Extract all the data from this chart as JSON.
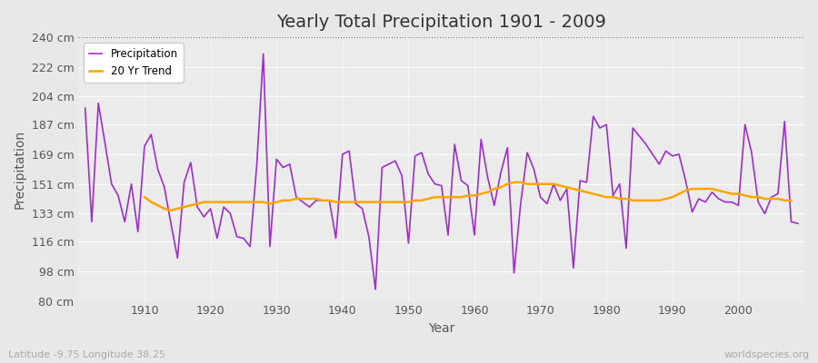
{
  "title": "Yearly Total Precipitation 1901 - 2009",
  "xlabel": "Year",
  "ylabel": "Precipitation",
  "lat_lon_label": "Latitude -9.75 Longitude 38.25",
  "watermark": "worldspecies.org",
  "years": [
    1901,
    1902,
    1903,
    1904,
    1905,
    1906,
    1907,
    1908,
    1909,
    1910,
    1911,
    1912,
    1913,
    1914,
    1915,
    1916,
    1917,
    1918,
    1919,
    1920,
    1921,
    1922,
    1923,
    1924,
    1925,
    1926,
    1927,
    1928,
    1929,
    1930,
    1931,
    1932,
    1933,
    1934,
    1935,
    1936,
    1937,
    1938,
    1939,
    1940,
    1941,
    1942,
    1943,
    1944,
    1945,
    1946,
    1947,
    1948,
    1949,
    1950,
    1951,
    1952,
    1953,
    1954,
    1955,
    1956,
    1957,
    1958,
    1959,
    1960,
    1961,
    1962,
    1963,
    1964,
    1965,
    1966,
    1967,
    1968,
    1969,
    1970,
    1971,
    1972,
    1973,
    1974,
    1975,
    1976,
    1977,
    1978,
    1979,
    1980,
    1981,
    1982,
    1983,
    1984,
    1985,
    1986,
    1987,
    1988,
    1989,
    1990,
    1991,
    1992,
    1993,
    1994,
    1995,
    1996,
    1997,
    1998,
    1999,
    2000,
    2001,
    2002,
    2003,
    2004,
    2005,
    2006,
    2007,
    2008,
    2009
  ],
  "precipitation": [
    197,
    128,
    200,
    176,
    151,
    144,
    128,
    151,
    122,
    174,
    181,
    160,
    149,
    127,
    106,
    152,
    164,
    137,
    131,
    136,
    118,
    137,
    133,
    119,
    118,
    113,
    162,
    230,
    113,
    166,
    161,
    163,
    143,
    140,
    137,
    141,
    141,
    141,
    118,
    169,
    171,
    139,
    136,
    119,
    87,
    161,
    163,
    165,
    156,
    115,
    168,
    170,
    157,
    151,
    150,
    120,
    175,
    153,
    150,
    120,
    178,
    155,
    138,
    158,
    173,
    97,
    139,
    170,
    160,
    143,
    139,
    151,
    141,
    148,
    100,
    153,
    152,
    192,
    185,
    187,
    144,
    151,
    112,
    185,
    180,
    175,
    169,
    163,
    171,
    168,
    169,
    153,
    134,
    142,
    140,
    146,
    142,
    140,
    140,
    138,
    187,
    170,
    140,
    133,
    143,
    145,
    189,
    128,
    127
  ],
  "trend_start_year": 1910,
  "trend": [
    143,
    140,
    138,
    136,
    135,
    136,
    137,
    138,
    139,
    140,
    140,
    140,
    140,
    140,
    140,
    140,
    140,
    140,
    140,
    139,
    140,
    141,
    141,
    142,
    142,
    142,
    142,
    141,
    141,
    140,
    140,
    140,
    140,
    140,
    140,
    140,
    140,
    140,
    140,
    140,
    140,
    141,
    141,
    142,
    143,
    143,
    143,
    143,
    143,
    144,
    144,
    145,
    146,
    148,
    149,
    151,
    152,
    152,
    151,
    151,
    151,
    151,
    151,
    150,
    149,
    148,
    147,
    146,
    145,
    144,
    143,
    143,
    142,
    142,
    141,
    141,
    141,
    141,
    141,
    142,
    143,
    145,
    147,
    148,
    148,
    148,
    148,
    147,
    146,
    145,
    145,
    144,
    143,
    143,
    142,
    142,
    142,
    141,
    141
  ],
  "precip_color": "#9B30C8",
  "trend_color": "#FFA500",
  "bg_color": "#E8E8E8",
  "plot_bg_color": "#EBEBEB",
  "ylim": [
    80,
    240
  ],
  "yticks": [
    80,
    98,
    116,
    133,
    151,
    169,
    187,
    204,
    222,
    240
  ],
  "ytick_labels": [
    "80 cm",
    "98 cm",
    "116 cm",
    "133 cm",
    "151 cm",
    "169 cm",
    "187 cm",
    "204 cm",
    "222 cm",
    "240 cm"
  ],
  "xticks": [
    1910,
    1920,
    1930,
    1940,
    1950,
    1960,
    1970,
    1980,
    1990,
    2000
  ],
  "title_fontsize": 14,
  "axis_label_fontsize": 10,
  "tick_fontsize": 9
}
